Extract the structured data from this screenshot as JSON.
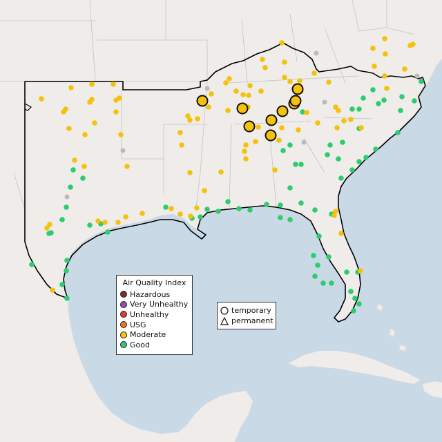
{
  "legend": {
    "title": "Air Quality Index",
    "items": [
      {
        "label": "Hazardous",
        "color": "#7e2d2d"
      },
      {
        "label": "Very Unhealthy",
        "color": "#8f4fb7"
      },
      {
        "label": "Unhealthy",
        "color": "#e03c31"
      },
      {
        "label": "USG",
        "color": "#e8761d"
      },
      {
        "label": "Moderate",
        "color": "#f4c20d"
      },
      {
        "label": "Good",
        "color": "#2ecc71"
      }
    ]
  },
  "site_legend": {
    "temporary": "temporary",
    "permanent": "permanent"
  },
  "colors": {
    "water": "#c9d9e6",
    "land": "#efece9",
    "border": "#000000",
    "no_data": "#bbbbbb"
  }
}
